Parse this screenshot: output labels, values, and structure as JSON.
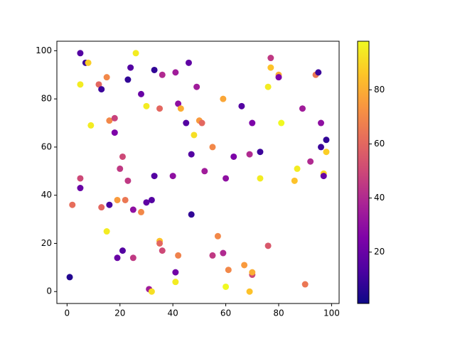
{
  "chart_data": {
    "type": "scatter",
    "colormap": "plasma",
    "x": [
      1,
      5,
      5,
      5,
      5,
      2,
      7,
      8,
      9,
      12,
      13,
      13,
      15,
      15,
      16,
      16,
      18,
      18,
      19,
      19,
      20,
      21,
      21,
      22,
      23,
      23,
      24,
      25,
      25,
      26,
      28,
      28,
      30,
      30,
      31,
      32,
      32,
      33,
      33,
      35,
      35,
      35,
      36,
      36,
      40,
      41,
      41,
      41,
      42,
      42,
      43,
      45,
      46,
      47,
      47,
      48,
      49,
      50,
      51,
      52,
      55,
      55,
      57,
      59,
      59,
      60,
      60,
      61,
      63,
      66,
      67,
      69,
      69,
      70,
      70,
      70,
      73,
      73,
      76,
      76,
      77,
      77,
      80,
      80,
      81,
      86,
      87,
      89,
      90,
      92,
      94,
      95,
      96,
      96,
      97,
      97,
      98,
      98
    ],
    "y": [
      6,
      99,
      86,
      47,
      43,
      36,
      95,
      95,
      69,
      86,
      84,
      35,
      89,
      25,
      71,
      36,
      72,
      66,
      38,
      14,
      51,
      56,
      17,
      38,
      88,
      46,
      93,
      34,
      14,
      99,
      82,
      33,
      77,
      37,
      1,
      0,
      38,
      92,
      48,
      76,
      21,
      20,
      90,
      17,
      48,
      91,
      8,
      4,
      78,
      15,
      76,
      70,
      95,
      57,
      32,
      65,
      85,
      71,
      70,
      50,
      60,
      15,
      23,
      80,
      16,
      47,
      2,
      9,
      56,
      77,
      11,
      57,
      0,
      70,
      7,
      8,
      58,
      47,
      85,
      19,
      97,
      93,
      90,
      89,
      70,
      46,
      51,
      76,
      3,
      54,
      90,
      91,
      70,
      60,
      49,
      48,
      63,
      58
    ],
    "c": [
      5,
      15,
      95,
      50,
      20,
      62,
      10,
      88,
      95,
      60,
      10,
      60,
      70,
      95,
      70,
      12,
      48,
      25,
      75,
      20,
      45,
      50,
      15,
      65,
      8,
      45,
      15,
      30,
      45,
      95,
      20,
      70,
      95,
      18,
      35,
      92,
      15,
      8,
      15,
      60,
      85,
      60,
      40,
      50,
      30,
      35,
      22,
      95,
      30,
      68,
      80,
      15,
      18,
      15,
      8,
      92,
      35,
      75,
      60,
      35,
      70,
      45,
      70,
      78,
      40,
      30,
      98,
      70,
      25,
      15,
      75,
      40,
      85,
      25,
      50,
      80,
      10,
      95,
      95,
      55,
      45,
      85,
      80,
      25,
      98,
      85,
      95,
      35,
      65,
      40,
      65,
      10,
      30,
      10,
      90,
      20,
      8,
      88
    ],
    "xlim": [
      -3.85,
      102.85
    ],
    "ylim": [
      -4.95,
      103.95
    ],
    "xticks": [
      0,
      20,
      40,
      60,
      80,
      100
    ],
    "yticks": [
      0,
      20,
      40,
      60,
      80,
      100
    ],
    "clim": [
      1,
      98
    ],
    "cticks": [
      20,
      40,
      60,
      80
    ]
  }
}
